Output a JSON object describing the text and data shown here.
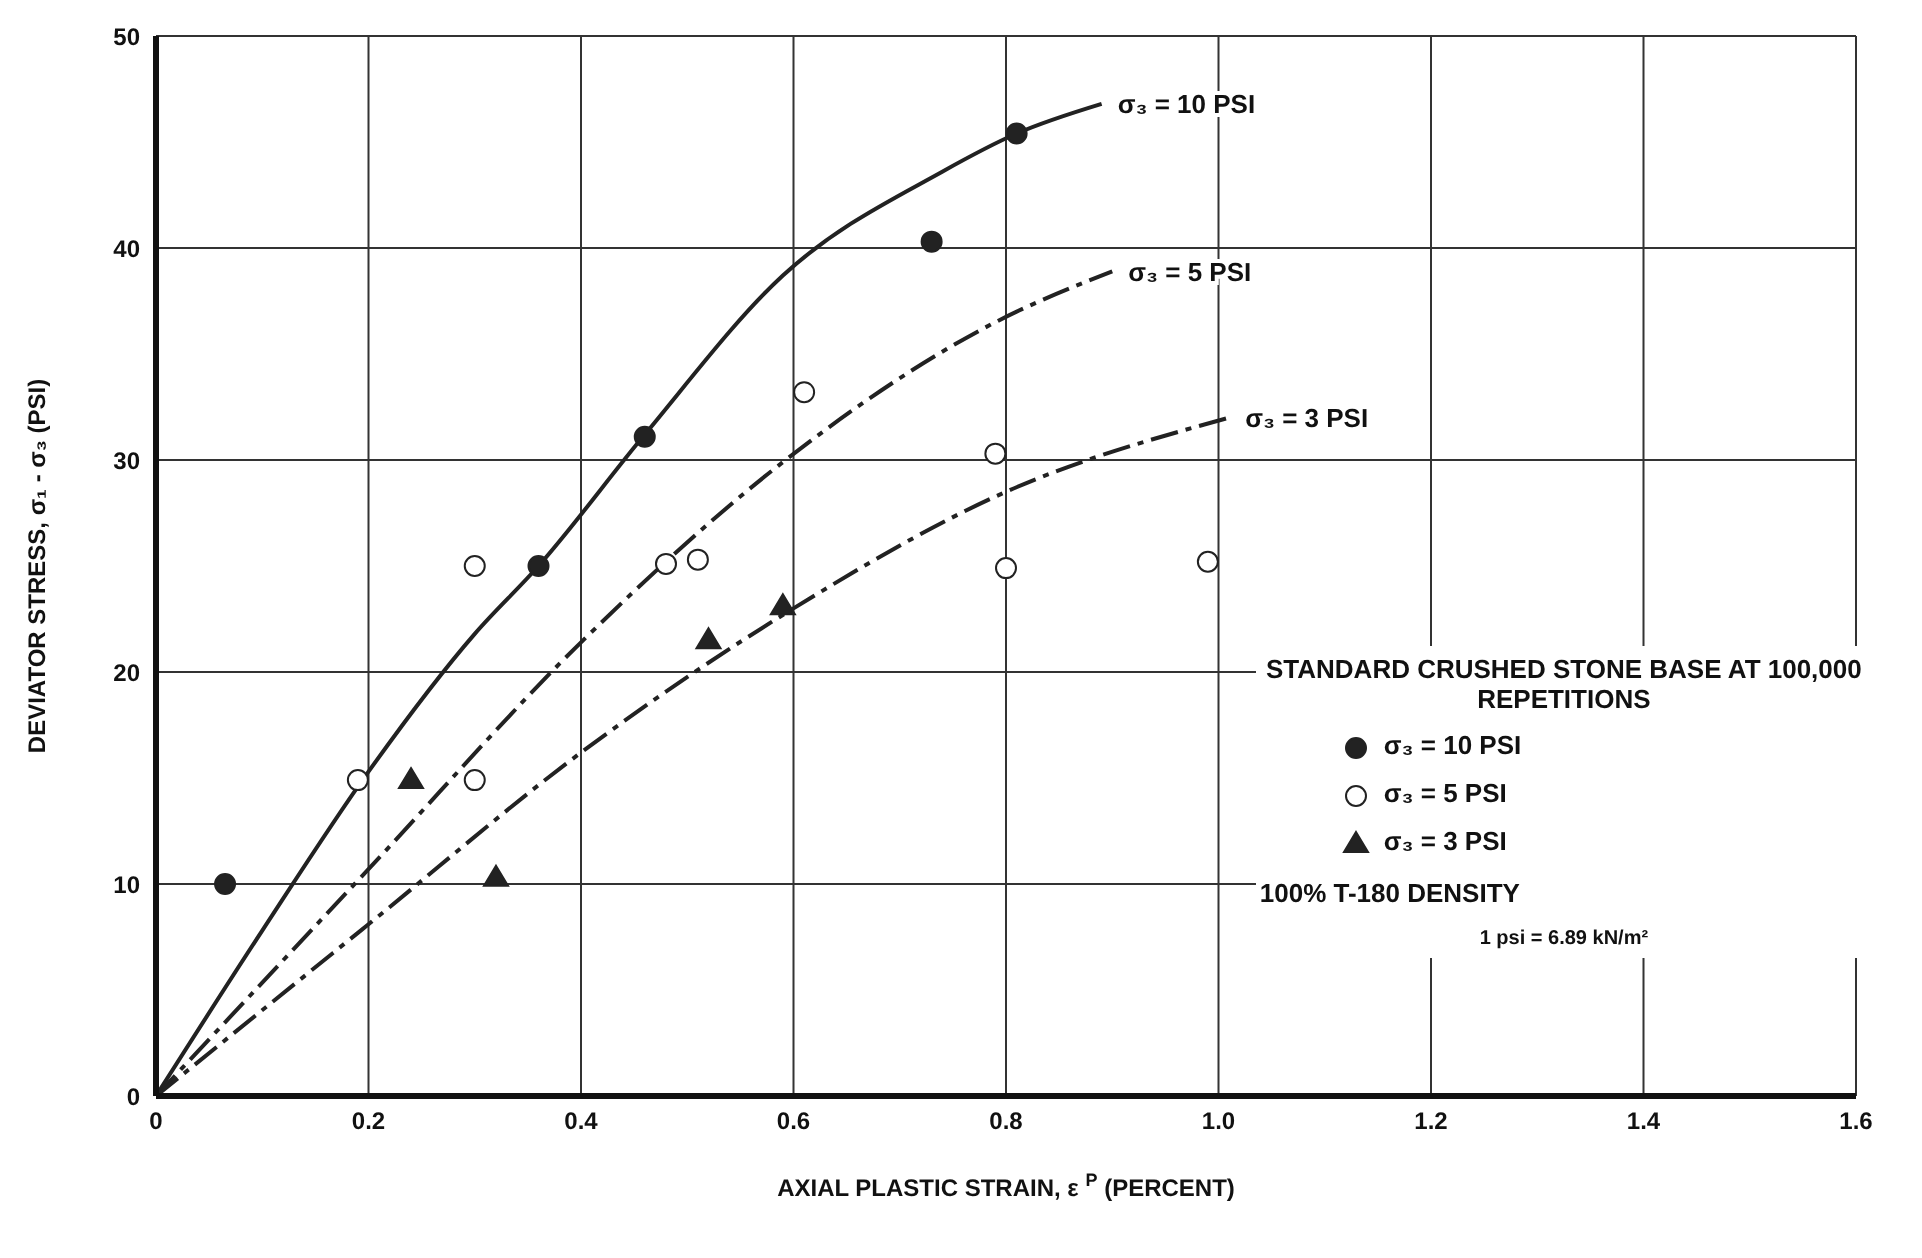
{
  "chart_data": {
    "type": "scatter",
    "xlabel": "AXIAL PLASTIC STRAIN, ε $^{P}$ (PERCENT)",
    "ylabel": "DEVIATOR STRESS, σ₁ - σ₃ (PSI)",
    "legend_title": "STANDARD CRUSHED STONE BASE AT 100,000 REPETITIONS",
    "xlim": [
      0,
      1.6
    ],
    "xticks": [
      0,
      0.2,
      0.4,
      0.6,
      0.8,
      {
        "value": 1,
        "label": "1.0"
      },
      1.2,
      1.4,
      1.6
    ],
    "ylim": [
      0,
      50
    ],
    "yticks": [
      0,
      10,
      20,
      30,
      40,
      50
    ],
    "grid": true,
    "legend": "right",
    "series": [
      {
        "name": "σ₃ = 10 PSI",
        "color": "#222222",
        "marker": "circle",
        "x": [
          0.065,
          0.36,
          0.46,
          0.73,
          0.81
        ],
        "values": [
          10,
          25,
          31.1,
          40.3,
          45.4
        ]
      },
      {
        "name": "σ₃ = 5 PSI",
        "color": "#ffffff",
        "marker": "circle",
        "x": [
          0.19,
          0.3,
          0.3,
          0.48,
          0.51,
          0.61,
          0.79,
          0.8,
          0.99
        ],
        "values": [
          14.9,
          14.9,
          25,
          25.1,
          25.3,
          33.2,
          30.3,
          24.9,
          25.2
        ]
      },
      {
        "name": "σ₃ = 3 PSI",
        "color": "#222222",
        "marker": "triangle",
        "x": [
          0.24,
          0.32,
          0.52,
          0.59
        ],
        "values": [
          14.9,
          10.3,
          21.5,
          23.1
        ]
      },
      {
        "type": "line",
        "color": "#222222",
        "line_style": "solid",
        "x": [
          0,
          0.1,
          0.2,
          0.3,
          0.36,
          0.46,
          0.59,
          0.74,
          0.81,
          0.89
        ],
        "values": [
          0,
          7.8,
          15.3,
          21.8,
          25,
          31.2,
          38.7,
          43.6,
          45.4,
          46.8
        ]
      },
      {
        "type": "line",
        "color": "#222222",
        "line_style": "dashed",
        "x": [
          0,
          0.2,
          0.4,
          0.59,
          0.79,
          0.9
        ],
        "values": [
          0,
          10.7,
          21.4,
          29.9,
          36.5,
          38.9
        ]
      },
      {
        "type": "line",
        "color": "#222222",
        "line_style": "dashed",
        "x": [
          0,
          0.2,
          0.4,
          0.6,
          0.8,
          1.01
        ],
        "values": [
          0,
          8.1,
          16.2,
          23,
          28.5,
          32
        ]
      }
    ],
    "annotations": [
      {
        "text": "σ₃ = 10 PSI",
        "x": 0.89,
        "y": 46.8
      },
      {
        "text": "σ₃ = 5 PSI",
        "x": 0.9,
        "y": 38.9
      },
      {
        "text": "σ₃ = 3 PSI",
        "x": 1.01,
        "y": 32
      },
      "100%  T-180 DENSITY",
      "1 psi = 6.89 kN/m²"
    ]
  }
}
